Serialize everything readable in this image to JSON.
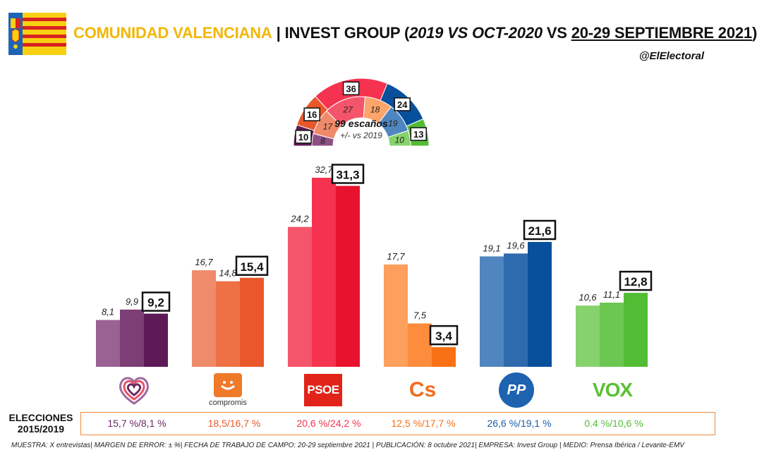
{
  "header": {
    "region": "COMUNIDAD VALENCIANA",
    "separator": "|",
    "pollster": "INVEST GROUP",
    "paren_open": "(",
    "period_a": "2019 VS OCT-2020",
    "vs": "VS",
    "period_b": "20-29 SEPTIEMBRE 2021",
    "paren_close": ")"
  },
  "handle": "@ElElectoral",
  "colors": {
    "accent_yellow": "#f2b705",
    "elections_border": "#f08a3c"
  },
  "chart_data": {
    "type": "bar",
    "categories": [
      "Unides Podem",
      "Compromís",
      "PSOE",
      "Cs",
      "PP",
      "VOX"
    ],
    "series": [
      {
        "values": [
          8.1,
          16.7,
          24.2,
          17.7,
          19.1,
          10.6
        ]
      },
      {
        "values": [
          9.9,
          14.8,
          32.7,
          7.5,
          19.6,
          11.1
        ]
      },
      {
        "values": [
          9.2,
          15.4,
          31.3,
          3.4,
          21.6,
          12.8
        ]
      }
    ],
    "data_labels": [
      [
        "8,1",
        "9,9",
        "9,2"
      ],
      [
        "16,7",
        "14,8",
        "15,4"
      ],
      [
        "24,2",
        "32,7",
        "31,3"
      ],
      [
        "17,7",
        "7,5",
        "3,4"
      ],
      [
        "19,1",
        "19,6",
        "21,6"
      ],
      [
        "10,6",
        "11,1",
        "12,8"
      ]
    ],
    "colors": [
      [
        "#996293",
        "#7d3d75",
        "#5e1a56"
      ],
      [
        "#ef8a6a",
        "#ed7144",
        "#e9572a"
      ],
      [
        "#f5556b",
        "#f5324f",
        "#e8122e"
      ],
      [
        "#fd9f5d",
        "#fd8c3c",
        "#f87114"
      ],
      [
        "#4f86c0",
        "#2e6aae",
        "#08509c"
      ],
      [
        "#86d26c",
        "#6cc750",
        "#52bd34"
      ]
    ],
    "ylim": [
      0,
      35
    ]
  },
  "hemicycle": {
    "title": "99 escaños",
    "subtitle": "+/- vs 2019",
    "parties": [
      {
        "name": "Unides Podem",
        "seats_2019": 8,
        "seats_2021": 10,
        "outer": "#5e1a56",
        "inner": "#8c4f86"
      },
      {
        "name": "Compromís",
        "seats_2019": 17,
        "seats_2021": 16,
        "outer": "#e9572a",
        "inner": "#ef8a6a"
      },
      {
        "name": "PSOE",
        "seats_2019": 27,
        "seats_2021": 36,
        "outer": "#f5324f",
        "inner": "#f5556b"
      },
      {
        "name": "Cs",
        "seats_2019": 18,
        "seats_2021": 0,
        "outer": "#fd8c3c",
        "inner": "#fda46a"
      },
      {
        "name": "PP",
        "seats_2019": 19,
        "seats_2021": 24,
        "outer": "#08509c",
        "inner": "#4f86c0"
      },
      {
        "name": "VOX",
        "seats_2019": 10,
        "seats_2021": 13,
        "outer": "#52bd34",
        "inner": "#86d26c"
      }
    ]
  },
  "logos": {
    "compromis_text": "compromis",
    "psoe_text": "PSOE",
    "cs_text": "Cs",
    "pp_text": "PP",
    "vox_text": "VOX"
  },
  "elections": {
    "label_line1": "ELECCIONES",
    "label_line2": "2015/2019",
    "values": [
      {
        "text": "15,7 %/8,1 %",
        "color": "#6a2a63"
      },
      {
        "text": "18,5/16,7 %",
        "color": "#e9572a"
      },
      {
        "text": "20,6 %/24,2 %",
        "color": "#f5324f"
      },
      {
        "text": "12,5 %/17,7 %",
        "color": "#f87114"
      },
      {
        "text": "26,6 %/19,1 %",
        "color": "#1a5ea8"
      },
      {
        "text": "0.4 %/10,6 %",
        "color": "#52bd34"
      }
    ]
  },
  "footnote": "MUESTRA: X entrevistas| MARGEN DE ERROR: ± %| FECHA DE TRABAJO DE CAMPO: 20-29 septiembre 2021 | PUBLICACIÓN: 8 octubre 2021| EMPRESA: Invest Group | MEDIO: Prensa Ibérica / Levante-EMV"
}
